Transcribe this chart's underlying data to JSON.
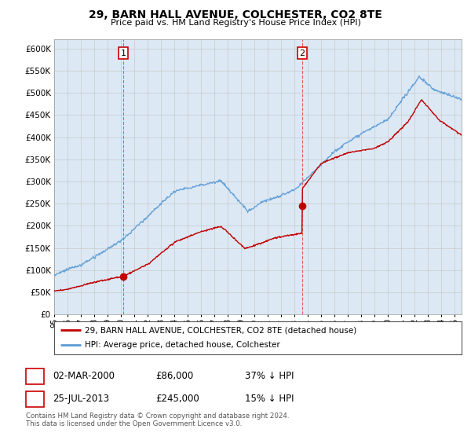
{
  "title": "29, BARN HALL AVENUE, COLCHESTER, CO2 8TE",
  "subtitle": "Price paid vs. HM Land Registry's House Price Index (HPI)",
  "legend_line1": "29, BARN HALL AVENUE, COLCHESTER, CO2 8TE (detached house)",
  "legend_line2": "HPI: Average price, detached house, Colchester",
  "footnote": "Contains HM Land Registry data © Crown copyright and database right 2024.\nThis data is licensed under the Open Government Licence v3.0.",
  "sale1_date": "02-MAR-2000",
  "sale1_price": "£86,000",
  "sale1_hpi": "37% ↓ HPI",
  "sale2_date": "25-JUL-2013",
  "sale2_price": "£245,000",
  "sale2_hpi": "15% ↓ HPI",
  "hpi_color": "#5b9bd5",
  "price_color": "#c00000",
  "ylim_min": 0,
  "ylim_max": 620000,
  "yticks": [
    0,
    50000,
    100000,
    150000,
    200000,
    250000,
    300000,
    350000,
    400000,
    450000,
    500000,
    550000,
    600000
  ],
  "ytick_labels": [
    "£0",
    "£50K",
    "£100K",
    "£150K",
    "£200K",
    "£250K",
    "£300K",
    "£350K",
    "£400K",
    "£450K",
    "£500K",
    "£550K",
    "£600K"
  ],
  "sale1_x": 2000.17,
  "sale1_y": 86000,
  "sale2_x": 2013.57,
  "sale2_y": 245000,
  "vline1_x": 2000.17,
  "vline2_x": 2013.57,
  "xlim_min": 1995,
  "xlim_max": 2025.5,
  "background_color": "#ffffff",
  "grid_color": "#c8c8c8",
  "plot_bg_color": "#dce9f5",
  "shade_color": "#dce9f5"
}
